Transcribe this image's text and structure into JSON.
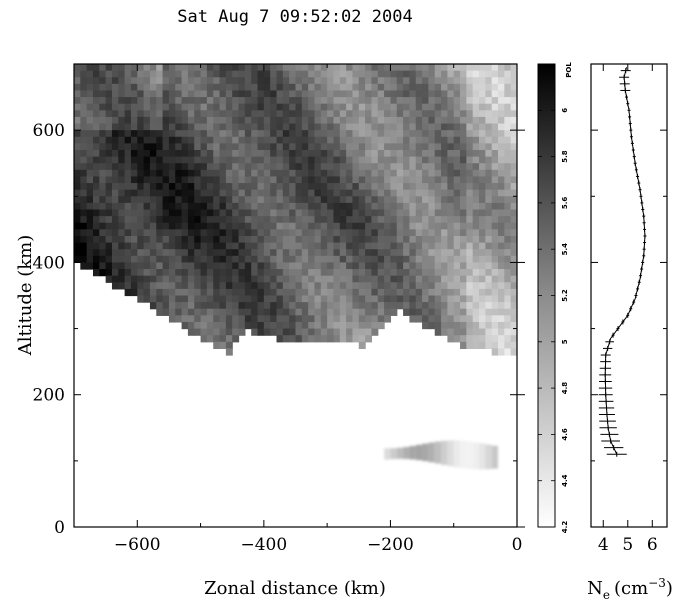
{
  "title": "Sat Aug  7 09:52:02 2004",
  "chart_data": [
    {
      "type": "heatmap",
      "name": "radar-scan",
      "xlabel": "Zonal distance (km)",
      "ylabel": "Altitude (km)",
      "xlim": [
        -700,
        0
      ],
      "ylim": [
        0,
        700
      ],
      "xticks": [
        -600,
        -400,
        -200,
        0
      ],
      "yticks": [
        0,
        200,
        400,
        600
      ],
      "xtick_labels": [
        "−600",
        "−400",
        "−200",
        "0"
      ],
      "ytick_labels": [
        "0",
        "200",
        "400",
        "600"
      ],
      "colormap": "gray-reversed",
      "color_range": [
        4.2,
        6.2
      ],
      "lower_edge_points": [
        {
          "x": -700,
          "y": 400
        },
        {
          "x": -600,
          "y": 345
        },
        {
          "x": -500,
          "y": 285
        },
        {
          "x": -455,
          "y": 262
        },
        {
          "x": -430,
          "y": 300
        },
        {
          "x": -400,
          "y": 290
        },
        {
          "x": -350,
          "y": 280
        },
        {
          "x": -300,
          "y": 285
        },
        {
          "x": -240,
          "y": 272
        },
        {
          "x": -220,
          "y": 300
        },
        {
          "x": -190,
          "y": 330
        },
        {
          "x": -150,
          "y": 305
        },
        {
          "x": -100,
          "y": 278
        },
        {
          "x": -40,
          "y": 265
        },
        {
          "x": 0,
          "y": 262
        }
      ],
      "low_layer_x": [
        -210,
        -30
      ],
      "low_layer_y": [
        95,
        125
      ]
    },
    {
      "type": "colorbar",
      "label": "POL",
      "range": [
        4.2,
        6.2
      ],
      "ticks": [
        4.2,
        4.4,
        4.6,
        4.8,
        5,
        5.2,
        5.4,
        5.6,
        5.8,
        6
      ],
      "tick_labels": [
        "4.2",
        "4.4",
        "4.6",
        "4.8",
        "5",
        "5.2",
        "5.4",
        "5.6",
        "5.8",
        "6"
      ]
    },
    {
      "type": "line",
      "name": "electron-density-profile",
      "xlabel": "Ne (cm⁻³)",
      "xlabel_parts": {
        "base": "N",
        "sub": "e",
        "unit_open": "(cm",
        "sup": "−3",
        "unit_close": ")"
      },
      "xlim": [
        3.5,
        6.6
      ],
      "ylim": [
        0,
        700
      ],
      "xticks": [
        4,
        5,
        6
      ],
      "xtick_labels": [
        "4",
        "5",
        "6"
      ],
      "points": [
        [
          4.55,
          110
        ],
        [
          4.3,
          130
        ],
        [
          4.2,
          150
        ],
        [
          4.15,
          170
        ],
        [
          4.1,
          200
        ],
        [
          4.08,
          230
        ],
        [
          4.1,
          260
        ],
        [
          4.3,
          285
        ],
        [
          4.6,
          300
        ],
        [
          5.0,
          320
        ],
        [
          5.3,
          345
        ],
        [
          5.5,
          375
        ],
        [
          5.65,
          410
        ],
        [
          5.7,
          440
        ],
        [
          5.65,
          470
        ],
        [
          5.5,
          510
        ],
        [
          5.3,
          550
        ],
        [
          5.15,
          590
        ],
        [
          5.05,
          630
        ],
        [
          4.9,
          660
        ],
        [
          4.85,
          680
        ],
        [
          4.95,
          695
        ]
      ]
    }
  ]
}
